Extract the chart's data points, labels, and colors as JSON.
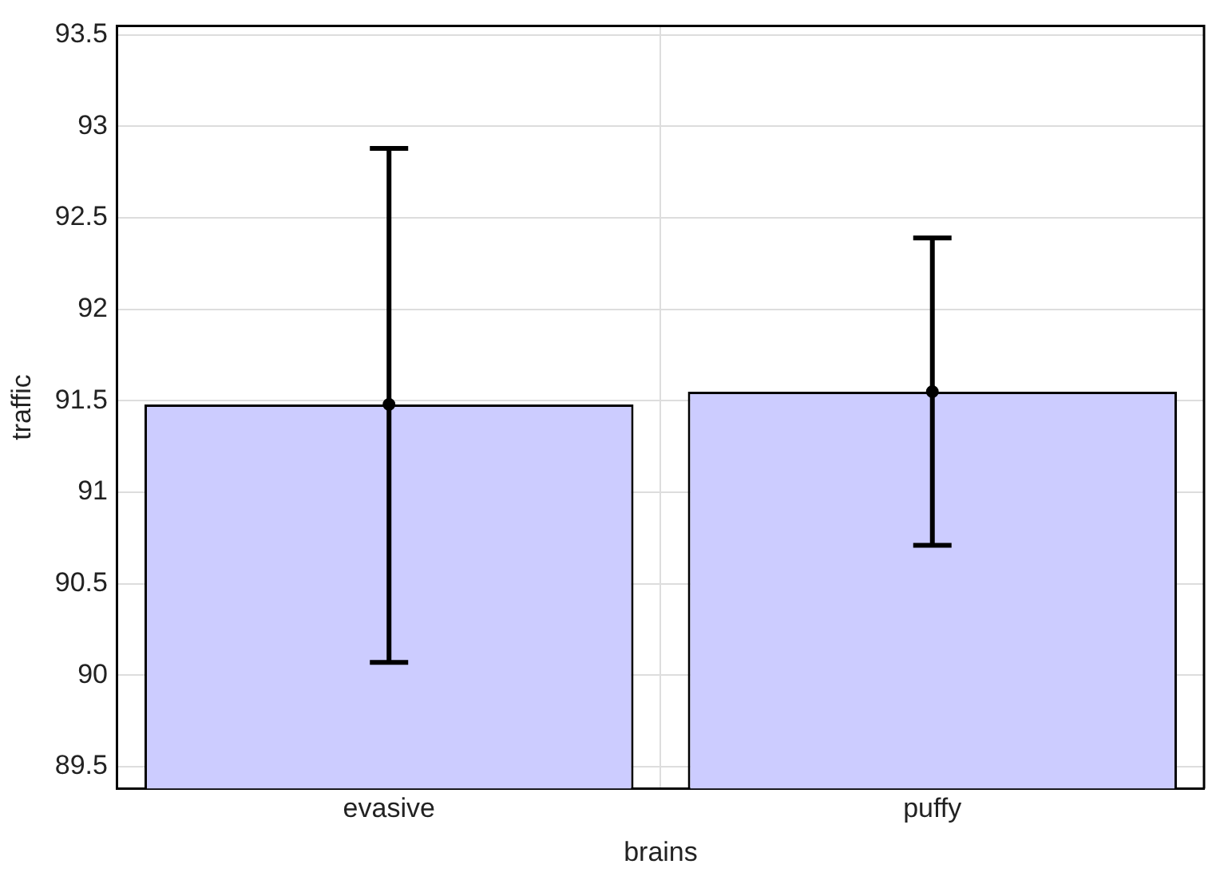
{
  "chart_data": {
    "type": "bar",
    "xlabel": "brains",
    "ylabel": "traffic",
    "categories": [
      "evasive",
      "puffy"
    ],
    "series": [
      {
        "type": "bar",
        "color": "#ccccff",
        "values": [
          91.48,
          91.55
        ]
      },
      {
        "type": "scatter",
        "x": [
          "evasive",
          "puffy"
        ],
        "color": "#000000",
        "marker": "circle",
        "values": [
          91.48,
          91.55
        ],
        "errors": [
          [
            90.07,
            92.88
          ],
          [
            90.71,
            92.39
          ]
        ]
      }
    ],
    "ylim": [
      89.38,
      93.55
    ],
    "yticks": [
      89.5,
      90,
      90.5,
      91,
      91.5,
      92,
      92.5,
      93,
      93.5
    ],
    "grid": true
  }
}
